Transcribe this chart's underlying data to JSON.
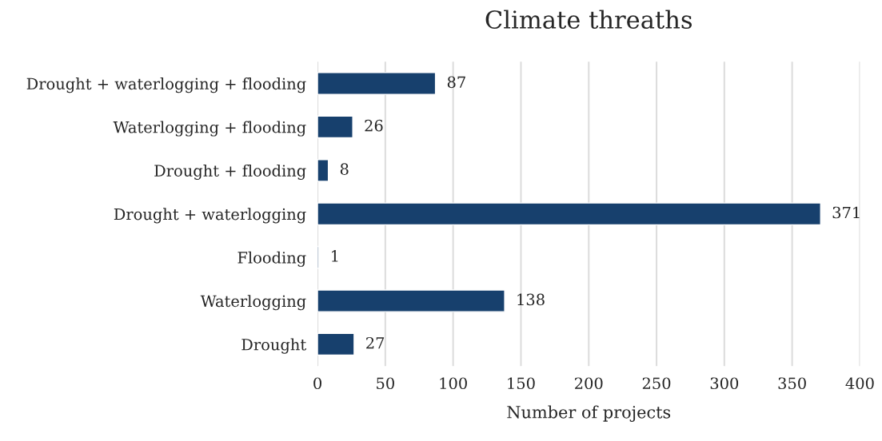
{
  "chart_data": {
    "type": "bar",
    "orientation": "horizontal",
    "title": "Climate threaths",
    "xlabel": "Number of projects",
    "categories": [
      "Drought + waterlogging + flooding",
      "Waterlogging + flooding",
      "Drought + flooding",
      "Drought + waterlogging",
      "Flooding",
      "Waterlogging",
      "Drought"
    ],
    "values": [
      87,
      26,
      8,
      371,
      1,
      138,
      27
    ],
    "color": "#17406d",
    "data_labels": true,
    "xlim": [
      0,
      400
    ],
    "xticks": [
      0,
      50,
      100,
      150,
      200,
      250,
      300,
      350,
      400
    ],
    "grid": "x"
  }
}
